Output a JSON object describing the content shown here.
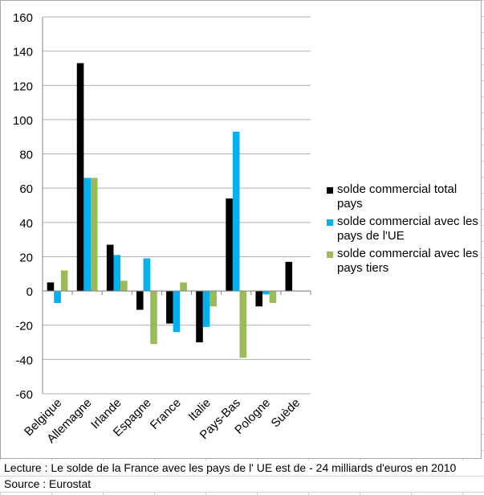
{
  "chart_data": {
    "type": "bar",
    "categories": [
      "Belgique",
      "Allemagne",
      "Irlande",
      "Espagne",
      "France",
      "Italie",
      "Pays-Bas",
      "Pologne",
      "Suède"
    ],
    "series": [
      {
        "name": "solde commercial total pays",
        "color": "#000000",
        "values": [
          5,
          133,
          27,
          -11,
          -19,
          -30,
          54,
          -9,
          17
        ]
      },
      {
        "name": "solde commercial avec les pays de l'UE",
        "color": "#00b0f0",
        "values": [
          -7,
          66,
          21,
          19,
          -24,
          -21,
          93,
          -2,
          null
        ]
      },
      {
        "name": "solde commercial avec les pays tiers",
        "color": "#9bbb59",
        "values": [
          12,
          66,
          6,
          -31,
          5,
          -9,
          -39,
          -7,
          null
        ]
      }
    ],
    "ylim": [
      -60,
      160
    ],
    "yticks": [
      "160",
      "140",
      "120",
      "100",
      "80",
      "60",
      "40",
      "20",
      "0",
      "-20",
      "-40",
      "-60"
    ],
    "grid": true,
    "legend_position": "right"
  },
  "notes": {
    "lecture": "Lecture : Le solde de la France avec les pays de l' UE est de - 24 milliards d'euros en 2010",
    "source": "Source : Eurostat"
  }
}
